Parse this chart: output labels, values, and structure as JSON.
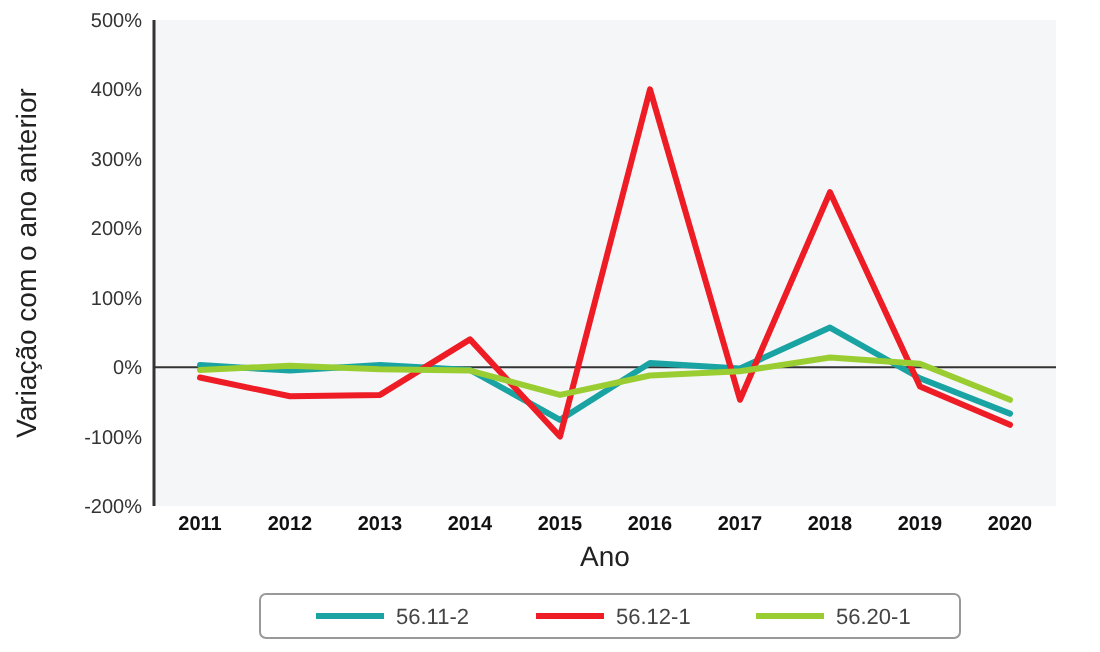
{
  "chart_data": {
    "type": "line",
    "xlabel": "Ano",
    "ylabel": "Variação com o ano anterior",
    "categories": [
      "2011",
      "2012",
      "2013",
      "2014",
      "2015",
      "2016",
      "2017",
      "2018",
      "2019",
      "2020"
    ],
    "series": [
      {
        "name": "56.11-2",
        "color": "#1aa3a3",
        "values": [
          3,
          -5,
          3,
          -4,
          -76,
          6,
          -2,
          57,
          -16,
          -67
        ]
      },
      {
        "name": "56.12-1",
        "color": "#ee1c25",
        "values": [
          -15,
          -42,
          -40,
          40,
          -100,
          400,
          -47,
          252,
          -28,
          -83
        ]
      },
      {
        "name": "56.20-1",
        "color": "#9acd32",
        "values": [
          -4,
          2,
          -3,
          -5,
          -40,
          -12,
          -6,
          14,
          5,
          -47
        ]
      }
    ],
    "ylim": [
      -200,
      500
    ],
    "yticks": [
      {
        "value": -200,
        "label": "-200%"
      },
      {
        "value": -100,
        "label": "-100%"
      },
      {
        "value": 0,
        "label": "0%"
      },
      {
        "value": 100,
        "label": "100%"
      },
      {
        "value": 200,
        "label": "200%"
      },
      {
        "value": 300,
        "label": "300%"
      },
      {
        "value": 400,
        "label": "400%"
      },
      {
        "value": 500,
        "label": "500%"
      }
    ],
    "ref_lines": [
      {
        "axis": "y",
        "value": 0,
        "color": "#333333"
      }
    ],
    "grid": false,
    "legend": "bottom",
    "marker": "none",
    "line_style": "solid"
  }
}
